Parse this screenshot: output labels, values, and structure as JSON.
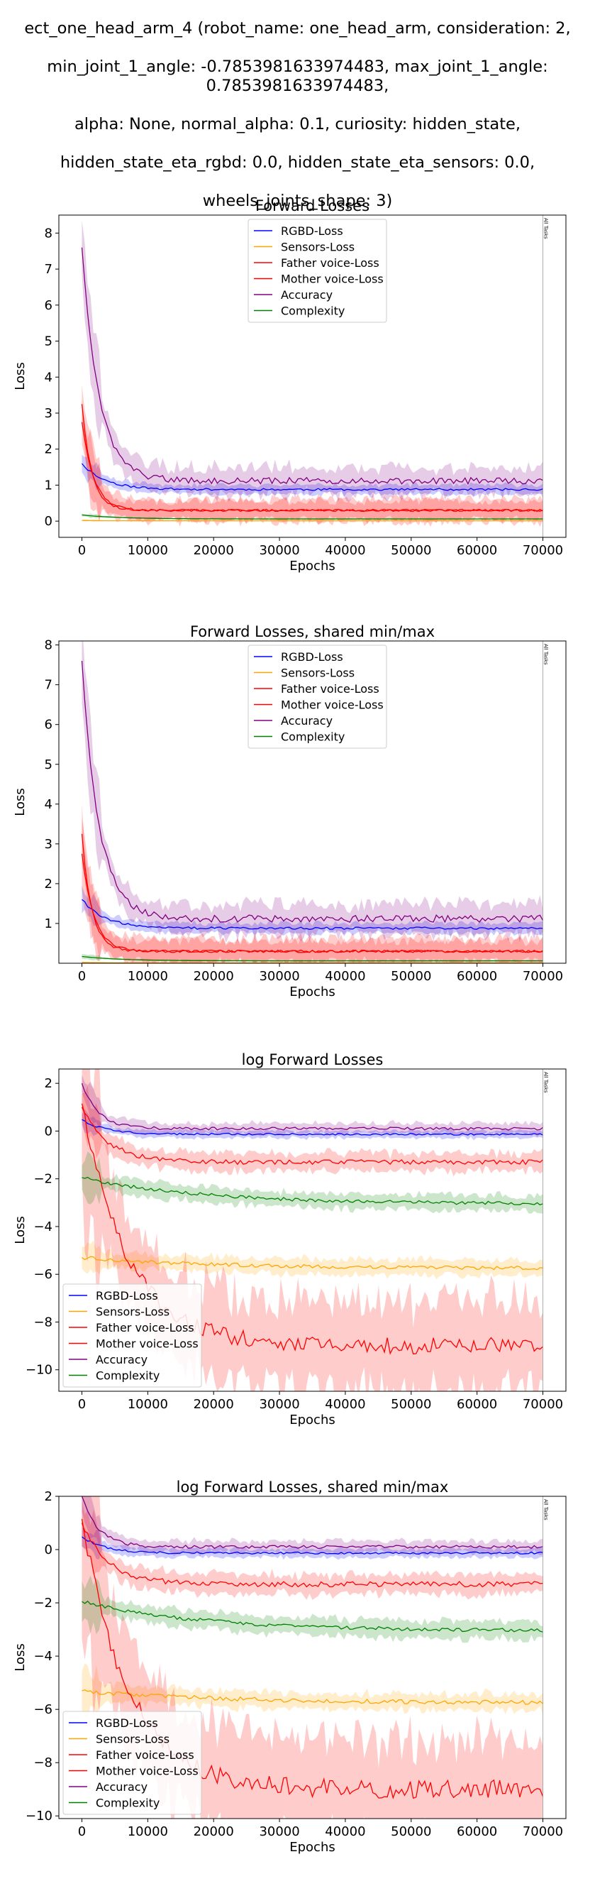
{
  "figure": {
    "title_lines": [
      "ect_one_head_arm_4 (robot_name: one_head_arm, consideration: 2,",
      "min_joint_1_angle: -0.7853981633974483, max_joint_1_angle: 0.7853981633974483,",
      "alpha: None, normal_alpha: 0.1, curiosity: hidden_state,",
      "hidden_state_eta_rgbd: 0.0, hidden_state_eta_sensors: 0.0,",
      "wheels_joints_shape: 3)"
    ]
  },
  "chart_data": [
    {
      "type": "line",
      "title": "Forward Losses",
      "xlabel": "Epochs",
      "ylabel": "Loss",
      "xlim": [
        -3500,
        73500
      ],
      "ylim": [
        -0.45,
        8.5
      ],
      "xticks": [
        0,
        10000,
        20000,
        30000,
        40000,
        50000,
        60000,
        70000
      ],
      "yticks": [
        0,
        1,
        2,
        3,
        4,
        5,
        6,
        7,
        8
      ],
      "legend_position": "upper-center",
      "vline": {
        "x": 70000,
        "label": "All Tasks"
      },
      "series": [
        {
          "name": "RGBD-Loss",
          "color": "#0000ff",
          "start": 1.6,
          "end": 0.88,
          "k": 3500,
          "noise": 0.03,
          "band": 0.12
        },
        {
          "name": "Sensors-Loss",
          "color": "#ffa500",
          "start": 0.02,
          "end": 0.01,
          "k": 2000,
          "noise": 0.0,
          "band": 0.01
        },
        {
          "name": "Father voice-Loss",
          "color": "#ff0000",
          "start": 2.75,
          "end": 0.3,
          "k": 1800,
          "noise": 0.03,
          "band": 0.3
        },
        {
          "name": "Mother voice-Loss",
          "color": "#ff0000",
          "start": 3.25,
          "end": 0.3,
          "k": 1500,
          "noise": 0.03,
          "band": 0.25
        },
        {
          "name": "Accuracy",
          "color": "#800080",
          "start": 7.6,
          "end": 1.12,
          "k": 2600,
          "noise": 0.09,
          "band": 0.35
        },
        {
          "name": "Complexity",
          "color": "#008000",
          "start": 0.17,
          "end": 0.06,
          "k": 6000,
          "noise": 0.0,
          "band": 0.02
        }
      ]
    },
    {
      "type": "line",
      "title": "Forward Losses, shared min/max",
      "xlabel": "Epochs",
      "ylabel": "Loss",
      "xlim": [
        -3500,
        73500
      ],
      "ylim": [
        0.0,
        8.1
      ],
      "xticks": [
        0,
        10000,
        20000,
        30000,
        40000,
        50000,
        60000,
        70000
      ],
      "yticks": [
        1,
        2,
        3,
        4,
        5,
        6,
        7,
        8
      ],
      "legend_position": "upper-center",
      "vline": {
        "x": 70000,
        "label": "All Tasks"
      },
      "series": [
        {
          "name": "RGBD-Loss",
          "color": "#0000ff",
          "start": 1.6,
          "end": 0.88,
          "k": 3500,
          "noise": 0.03,
          "band": 0.12
        },
        {
          "name": "Sensors-Loss",
          "color": "#ffa500",
          "start": 0.02,
          "end": 0.01,
          "k": 2000,
          "noise": 0.0,
          "band": 0.01
        },
        {
          "name": "Father voice-Loss",
          "color": "#ff0000",
          "start": 2.75,
          "end": 0.3,
          "k": 1800,
          "noise": 0.03,
          "band": 0.3
        },
        {
          "name": "Mother voice-Loss",
          "color": "#ff0000",
          "start": 3.25,
          "end": 0.3,
          "k": 1500,
          "noise": 0.03,
          "band": 0.25
        },
        {
          "name": "Accuracy",
          "color": "#800080",
          "start": 7.6,
          "end": 1.12,
          "k": 2600,
          "noise": 0.09,
          "band": 0.35
        },
        {
          "name": "Complexity",
          "color": "#008000",
          "start": 0.17,
          "end": 0.06,
          "k": 6000,
          "noise": 0.0,
          "band": 0.02
        }
      ]
    },
    {
      "type": "line",
      "title": "log Forward Losses",
      "xlabel": "Epochs",
      "ylabel": "Loss",
      "xlim": [
        -3500,
        73500
      ],
      "ylim": [
        -10.9,
        2.6
      ],
      "xticks": [
        0,
        10000,
        20000,
        30000,
        40000,
        50000,
        60000,
        70000
      ],
      "yticks": [
        -10,
        -8,
        -6,
        -4,
        -2,
        0,
        2
      ],
      "legend_position": "lower-left",
      "vline": {
        "x": 70000,
        "label": "All Tasks"
      },
      "series": [
        {
          "name": "RGBD-Loss",
          "color": "#0000ff",
          "start": 0.48,
          "end": -0.13,
          "k": 3500,
          "noise": 0.04,
          "band": 0.15
        },
        {
          "name": "Sensors-Loss",
          "color": "#ffa500",
          "start": -5.3,
          "end": -5.75,
          "k": 20000,
          "noise": 0.08,
          "band": 0.3
        },
        {
          "name": "Father voice-Loss",
          "color": "#ff0000",
          "start": 1.0,
          "end": -1.3,
          "k": 4000,
          "noise": 0.1,
          "band": 0.35
        },
        {
          "name": "Mother voice-Loss",
          "color": "#ff0000",
          "start": 1.15,
          "end": -9.0,
          "k": 7000,
          "noise": 0.35,
          "band": 1.8
        },
        {
          "name": "Accuracy",
          "color": "#800080",
          "start": 2.0,
          "end": 0.1,
          "k": 2500,
          "noise": 0.06,
          "band": 0.22
        },
        {
          "name": "Complexity",
          "color": "#008000",
          "start": -1.95,
          "end": -3.05,
          "k": 18000,
          "noise": 0.07,
          "band": 0.3
        }
      ]
    },
    {
      "type": "line",
      "title": "log Forward Losses, shared min/max",
      "xlabel": "Epochs",
      "ylabel": "Loss",
      "xlim": [
        -3500,
        73500
      ],
      "ylim": [
        -10.1,
        2.0
      ],
      "xticks": [
        0,
        10000,
        20000,
        30000,
        40000,
        50000,
        60000,
        70000
      ],
      "yticks": [
        -10,
        -8,
        -6,
        -4,
        -2,
        0,
        2
      ],
      "legend_position": "lower-left",
      "vline": {
        "x": 70000,
        "label": "All Tasks"
      },
      "series": [
        {
          "name": "RGBD-Loss",
          "color": "#0000ff",
          "start": 0.48,
          "end": -0.13,
          "k": 3500,
          "noise": 0.04,
          "band": 0.15
        },
        {
          "name": "Sensors-Loss",
          "color": "#ffa500",
          "start": -5.3,
          "end": -5.75,
          "k": 20000,
          "noise": 0.08,
          "band": 0.3
        },
        {
          "name": "Father voice-Loss",
          "color": "#ff0000",
          "start": 1.0,
          "end": -1.3,
          "k": 4000,
          "noise": 0.1,
          "band": 0.35
        },
        {
          "name": "Mother voice-Loss",
          "color": "#ff0000",
          "start": 1.15,
          "end": -9.0,
          "k": 7000,
          "noise": 0.35,
          "band": 1.8
        },
        {
          "name": "Accuracy",
          "color": "#800080",
          "start": 2.0,
          "end": 0.1,
          "k": 2500,
          "noise": 0.06,
          "band": 0.22
        },
        {
          "name": "Complexity",
          "color": "#008000",
          "start": -1.95,
          "end": -3.05,
          "k": 18000,
          "noise": 0.07,
          "band": 0.3
        }
      ]
    }
  ]
}
